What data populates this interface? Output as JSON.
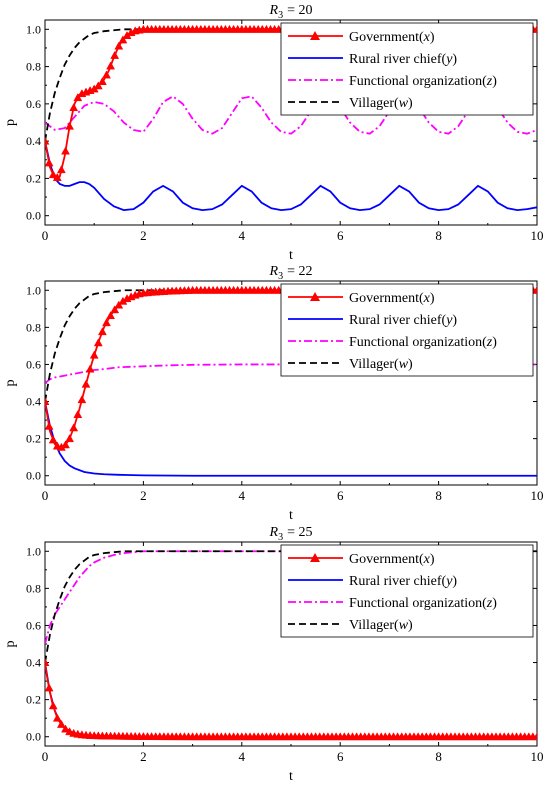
{
  "chart_data": [
    {
      "type": "line",
      "title": "R3 = 20",
      "title_prefix": "R",
      "title_sub": "3",
      "title_value": "= 20",
      "xlabel": "t",
      "ylabel": "p",
      "xlim": [
        0,
        10
      ],
      "ylim": [
        -0.05,
        1.05
      ],
      "xticks": [
        0,
        2,
        4,
        6,
        8,
        10
      ],
      "yticks": [
        0.0,
        0.2,
        0.4,
        0.6,
        0.8,
        1.0
      ],
      "ytick_labels": [
        "0.0",
        "0.2",
        "0.4",
        "0.6",
        "0.8",
        "1.0"
      ],
      "legend_position": "top-right",
      "series": [
        {
          "name": "Government(x)",
          "label_prefix": "Government(",
          "label_var": "x",
          "color": "#ff0000",
          "style": "solid-triangle",
          "x": [
            0,
            0.1,
            0.2,
            0.3,
            0.4,
            0.5,
            0.6,
            0.7,
            0.8,
            0.9,
            1.0,
            1.1,
            1.2,
            1.3,
            1.4,
            1.5,
            1.6,
            1.7,
            1.8,
            1.9,
            2.0,
            2.2,
            2.5,
            3,
            4,
            5,
            6,
            7,
            8,
            9,
            10
          ],
          "y": [
            0.4,
            0.26,
            0.2,
            0.21,
            0.32,
            0.48,
            0.6,
            0.65,
            0.66,
            0.67,
            0.68,
            0.7,
            0.73,
            0.78,
            0.85,
            0.91,
            0.95,
            0.975,
            0.99,
            0.995,
            1.0,
            1.0,
            1.0,
            1.0,
            1.0,
            1.0,
            1.0,
            1.0,
            1.0,
            1.0,
            1.0
          ]
        },
        {
          "name": "Rural river chief(y)",
          "label_prefix": "Rural river chief(",
          "label_var": "y",
          "color": "#0000ff",
          "style": "solid",
          "x": [
            0,
            0.1,
            0.2,
            0.3,
            0.4,
            0.5,
            0.6,
            0.7,
            0.8,
            0.9,
            1.0,
            1.2,
            1.4,
            1.6,
            1.8,
            2.0,
            2.2,
            2.4,
            2.6,
            2.8,
            3.0,
            3.2,
            3.4,
            3.6,
            3.8,
            4.0,
            4.2,
            4.4,
            4.6,
            4.8,
            5.0,
            5.2,
            5.4,
            5.6,
            5.8,
            6.0,
            6.2,
            6.4,
            6.6,
            6.8,
            7.0,
            7.2,
            7.4,
            7.6,
            7.8,
            8.0,
            8.2,
            8.4,
            8.6,
            8.8,
            9.0,
            9.2,
            9.4,
            9.6,
            9.8,
            10.0
          ],
          "y": [
            0.4,
            0.28,
            0.2,
            0.17,
            0.16,
            0.16,
            0.17,
            0.18,
            0.18,
            0.17,
            0.15,
            0.09,
            0.05,
            0.03,
            0.035,
            0.07,
            0.13,
            0.16,
            0.13,
            0.07,
            0.04,
            0.03,
            0.035,
            0.06,
            0.11,
            0.16,
            0.13,
            0.07,
            0.04,
            0.03,
            0.035,
            0.06,
            0.11,
            0.16,
            0.13,
            0.07,
            0.04,
            0.03,
            0.035,
            0.06,
            0.11,
            0.16,
            0.13,
            0.07,
            0.04,
            0.03,
            0.035,
            0.06,
            0.11,
            0.16,
            0.13,
            0.07,
            0.04,
            0.03,
            0.035,
            0.045
          ]
        },
        {
          "name": "Functional organization(z)",
          "label_prefix": "Functional organization(",
          "label_var": "z",
          "color": "#ff00ff",
          "style": "dashdot",
          "x": [
            0,
            0.2,
            0.4,
            0.6,
            0.8,
            1.0,
            1.2,
            1.4,
            1.6,
            1.8,
            2.0,
            2.2,
            2.4,
            2.6,
            2.8,
            3.0,
            3.2,
            3.4,
            3.6,
            3.8,
            4.0,
            4.2,
            4.4,
            4.6,
            4.8,
            5.0,
            5.2,
            5.4,
            5.6,
            5.8,
            6.0,
            6.2,
            6.4,
            6.6,
            6.8,
            7.0,
            7.2,
            7.4,
            7.6,
            7.8,
            8.0,
            8.2,
            8.4,
            8.6,
            8.8,
            9.0,
            9.2,
            9.4,
            9.6,
            9.8,
            10.0
          ],
          "y": [
            0.5,
            0.46,
            0.47,
            0.53,
            0.59,
            0.61,
            0.6,
            0.56,
            0.5,
            0.46,
            0.45,
            0.52,
            0.61,
            0.64,
            0.6,
            0.52,
            0.46,
            0.44,
            0.47,
            0.55,
            0.63,
            0.64,
            0.58,
            0.5,
            0.45,
            0.44,
            0.48,
            0.56,
            0.63,
            0.64,
            0.58,
            0.5,
            0.45,
            0.44,
            0.48,
            0.56,
            0.63,
            0.64,
            0.58,
            0.5,
            0.45,
            0.44,
            0.48,
            0.56,
            0.63,
            0.64,
            0.58,
            0.5,
            0.45,
            0.44,
            0.46
          ]
        },
        {
          "name": "Villager(w)",
          "label_prefix": "Villager(",
          "label_var": "w",
          "color": "#000000",
          "style": "dashed",
          "x": [
            0,
            0.1,
            0.2,
            0.3,
            0.4,
            0.5,
            0.6,
            0.7,
            0.8,
            0.9,
            1.0,
            1.2,
            1.4,
            1.6,
            2.0,
            3,
            4,
            5,
            6,
            7,
            8,
            9,
            10
          ],
          "y": [
            0.4,
            0.55,
            0.66,
            0.74,
            0.81,
            0.86,
            0.9,
            0.93,
            0.95,
            0.97,
            0.98,
            0.99,
            0.995,
            1.0,
            1.0,
            1.0,
            1.0,
            1.0,
            1.0,
            1.0,
            1.0,
            1.0,
            1.0
          ]
        }
      ]
    },
    {
      "type": "line",
      "title": "R3 = 22",
      "title_prefix": "R",
      "title_sub": "3",
      "title_value": "= 22",
      "xlabel": "t",
      "ylabel": "p",
      "xlim": [
        0,
        10
      ],
      "ylim": [
        -0.05,
        1.05
      ],
      "xticks": [
        0,
        2,
        4,
        6,
        8,
        10
      ],
      "yticks": [
        0.0,
        0.2,
        0.4,
        0.6,
        0.8,
        1.0
      ],
      "ytick_labels": [
        "0.0",
        "0.2",
        "0.4",
        "0.6",
        "0.8",
        "1.0"
      ],
      "legend_position": "top-right",
      "series": [
        {
          "name": "Government(x)",
          "label_prefix": "Government(",
          "label_var": "x",
          "color": "#ff0000",
          "style": "solid-triangle",
          "x": [
            0,
            0.1,
            0.2,
            0.3,
            0.4,
            0.5,
            0.6,
            0.7,
            0.8,
            0.9,
            1.0,
            1.1,
            1.2,
            1.3,
            1.4,
            1.5,
            1.6,
            1.7,
            1.8,
            1.9,
            2.0,
            2.2,
            2.5,
            3,
            4,
            5,
            6,
            7,
            8,
            9,
            10
          ],
          "y": [
            0.4,
            0.24,
            0.17,
            0.15,
            0.16,
            0.2,
            0.27,
            0.36,
            0.46,
            0.56,
            0.65,
            0.73,
            0.8,
            0.85,
            0.89,
            0.92,
            0.945,
            0.96,
            0.97,
            0.98,
            0.985,
            0.99,
            0.995,
            1.0,
            1.0,
            1.0,
            1.0,
            1.0,
            1.0,
            1.0,
            1.0
          ]
        },
        {
          "name": "Rural river chief(y)",
          "label_prefix": "Rural river chief(",
          "label_var": "y",
          "color": "#0000ff",
          "style": "solid",
          "x": [
            0,
            0.1,
            0.2,
            0.3,
            0.4,
            0.5,
            0.6,
            0.8,
            1.0,
            1.2,
            1.5,
            2,
            3,
            4,
            5,
            6,
            7,
            8,
            9,
            10
          ],
          "y": [
            0.4,
            0.27,
            0.18,
            0.12,
            0.08,
            0.055,
            0.04,
            0.02,
            0.012,
            0.008,
            0.005,
            0.002,
            0.0,
            0.0,
            0.0,
            0.0,
            0.0,
            0.0,
            0.0,
            0.0
          ]
        },
        {
          "name": "Functional organization(z)",
          "label_prefix": "Functional organization(",
          "label_var": "z",
          "color": "#ff00ff",
          "style": "dashdot",
          "x": [
            0,
            0.1,
            0.2,
            0.4,
            0.6,
            0.8,
            1.0,
            1.2,
            1.5,
            2.0,
            2.5,
            3,
            4,
            5,
            6,
            7,
            8,
            9,
            10
          ],
          "y": [
            0.5,
            0.52,
            0.53,
            0.54,
            0.55,
            0.56,
            0.57,
            0.575,
            0.585,
            0.59,
            0.595,
            0.598,
            0.6,
            0.6,
            0.6,
            0.6,
            0.6,
            0.6,
            0.6
          ]
        },
        {
          "name": "Villager(w)",
          "label_prefix": "Villager(",
          "label_var": "w",
          "color": "#000000",
          "style": "dashed",
          "x": [
            0,
            0.1,
            0.2,
            0.3,
            0.4,
            0.5,
            0.6,
            0.7,
            0.8,
            0.9,
            1.0,
            1.2,
            1.4,
            1.6,
            2.0,
            3,
            4,
            5,
            6,
            7,
            8,
            9,
            10
          ],
          "y": [
            0.4,
            0.55,
            0.66,
            0.74,
            0.81,
            0.86,
            0.9,
            0.93,
            0.95,
            0.97,
            0.98,
            0.99,
            0.995,
            1.0,
            1.0,
            1.0,
            1.0,
            1.0,
            1.0,
            1.0,
            1.0,
            1.0,
            1.0
          ]
        }
      ]
    },
    {
      "type": "line",
      "title": "R3 = 25",
      "title_prefix": "R",
      "title_sub": "3",
      "title_value": "= 25",
      "xlabel": "t",
      "ylabel": "p",
      "xlim": [
        0,
        10
      ],
      "ylim": [
        -0.05,
        1.05
      ],
      "xticks": [
        0,
        2,
        4,
        6,
        8,
        10
      ],
      "yticks": [
        0.0,
        0.2,
        0.4,
        0.6,
        0.8,
        1.0
      ],
      "ytick_labels": [
        "0.0",
        "0.2",
        "0.4",
        "0.6",
        "0.8",
        "1.0"
      ],
      "legend_position": "top-right",
      "series": [
        {
          "name": "Government(x)",
          "label_prefix": "Government(",
          "label_var": "x",
          "color": "#ff0000",
          "style": "solid-triangle",
          "x": [
            0,
            0.05,
            0.1,
            0.15,
            0.2,
            0.25,
            0.3,
            0.35,
            0.4,
            0.45,
            0.5,
            0.55,
            0.6,
            0.7,
            0.8,
            0.9,
            1.0,
            1.2,
            1.5,
            2,
            3,
            4,
            5,
            6,
            7,
            8,
            9,
            10
          ],
          "y": [
            0.4,
            0.31,
            0.24,
            0.18,
            0.14,
            0.1,
            0.08,
            0.06,
            0.045,
            0.035,
            0.027,
            0.021,
            0.017,
            0.012,
            0.009,
            0.007,
            0.006,
            0.004,
            0.003,
            0.001,
            0.0,
            0.0,
            0.0,
            0.0,
            0.0,
            0.0,
            0.0,
            0.0
          ]
        },
        {
          "name": "Rural river chief(y)",
          "label_prefix": "Rural river chief(",
          "label_var": "y",
          "color": "#0000ff",
          "style": "solid",
          "x": [
            0,
            0.1,
            0.2,
            0.3,
            0.4,
            0.5,
            0.6,
            0.8,
            1.0,
            1.5,
            2,
            3,
            4,
            5,
            6,
            7,
            8,
            9,
            10
          ],
          "y": [
            0.4,
            0.24,
            0.14,
            0.08,
            0.05,
            0.03,
            0.02,
            0.01,
            0.005,
            0.002,
            0.0,
            0.0,
            0.0,
            0.0,
            0.0,
            0.0,
            0.0,
            0.0,
            0.0
          ]
        },
        {
          "name": "Functional organization(z)",
          "label_prefix": "Functional organization(",
          "label_var": "z",
          "color": "#ff00ff",
          "style": "dashdot",
          "x": [
            0,
            0.1,
            0.2,
            0.3,
            0.4,
            0.5,
            0.6,
            0.7,
            0.8,
            0.9,
            1.0,
            1.2,
            1.4,
            1.6,
            1.8,
            2.0,
            2.5,
            3,
            4,
            5,
            6,
            7,
            8,
            9,
            10
          ],
          "y": [
            0.5,
            0.6,
            0.66,
            0.7,
            0.74,
            0.78,
            0.82,
            0.86,
            0.89,
            0.92,
            0.94,
            0.965,
            0.98,
            0.99,
            0.995,
            1.0,
            1.0,
            1.0,
            1.0,
            1.0,
            1.0,
            1.0,
            1.0,
            1.0,
            1.0
          ]
        },
        {
          "name": "Villager(w)",
          "label_prefix": "Villager(",
          "label_var": "w",
          "color": "#000000",
          "style": "dashed",
          "x": [
            0,
            0.1,
            0.2,
            0.3,
            0.4,
            0.5,
            0.6,
            0.7,
            0.8,
            0.9,
            1.0,
            1.2,
            1.4,
            1.6,
            2.0,
            3,
            4,
            5,
            6,
            7,
            8,
            9,
            10
          ],
          "y": [
            0.4,
            0.55,
            0.66,
            0.74,
            0.81,
            0.86,
            0.9,
            0.93,
            0.95,
            0.97,
            0.98,
            0.99,
            0.995,
            1.0,
            1.0,
            1.0,
            1.0,
            1.0,
            1.0,
            1.0,
            1.0,
            1.0,
            1.0
          ]
        }
      ]
    }
  ]
}
